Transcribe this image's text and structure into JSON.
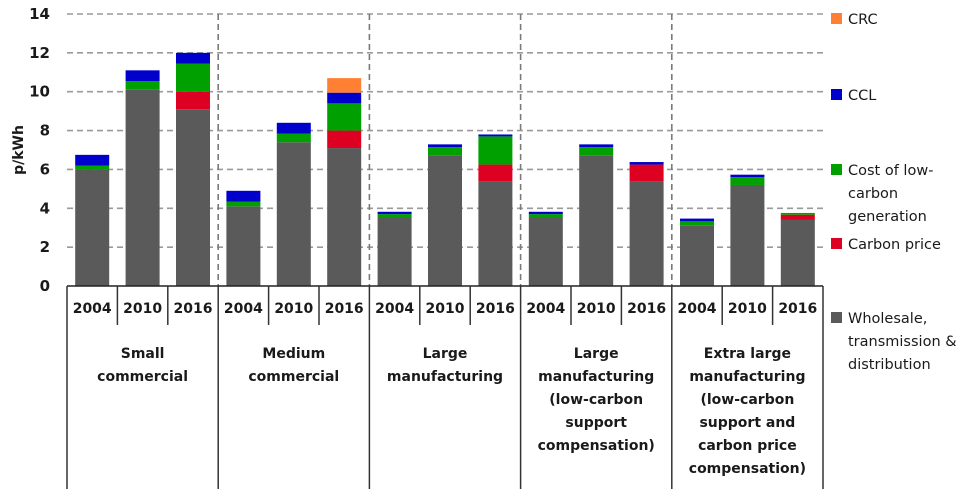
{
  "chart_data": {
    "type": "bar",
    "stacked": true,
    "title": "",
    "xlabel": "",
    "ylabel": "p/kWh",
    "ylim": [
      0,
      14
    ],
    "yticks": [
      0,
      2,
      4,
      6,
      8,
      10,
      12,
      14
    ],
    "grid": true,
    "legend_position": "right",
    "groups": [
      {
        "label": [
          "Small",
          "commercial"
        ]
      },
      {
        "label": [
          "Medium",
          "commercial"
        ]
      },
      {
        "label": [
          "Large",
          "manufacturing"
        ]
      },
      {
        "label": [
          "Large",
          "manufacturing",
          "(low-carbon",
          "support",
          "compensation)"
        ]
      },
      {
        "label": [
          "Extra large",
          "manufacturing",
          "(low-carbon",
          "support  and",
          "carbon price",
          "compensation)"
        ]
      }
    ],
    "years": [
      "2004",
      "2010",
      "2016"
    ],
    "categories": [
      "Small commercial 2004",
      "Small commercial 2010",
      "Small commercial 2016",
      "Medium commercial 2004",
      "Medium commercial 2010",
      "Medium commercial 2016",
      "Large manufacturing 2004",
      "Large manufacturing 2010",
      "Large manufacturing 2016",
      "Large manufacturing (low-carbon support compensation) 2004",
      "Large manufacturing (low-carbon support compensation) 2010",
      "Large manufacturing (low-carbon support compensation) 2016",
      "Extra large manufacturing (low-carbon support and carbon price compensation) 2004",
      "Extra large manufacturing (low-carbon support and carbon price compensation) 2010",
      "Extra large manufacturing (low-carbon support and carbon price compensation) 2016"
    ],
    "series": [
      {
        "name": "Wholesale, transmission & distribution",
        "legend_lines": [
          "Wholesale,",
          "transmission &",
          "distribution"
        ],
        "color": "#5a5a5a",
        "values": [
          6.0,
          10.1,
          9.1,
          4.1,
          7.4,
          7.1,
          3.5,
          6.7,
          5.4,
          3.5,
          6.7,
          5.4,
          3.1,
          5.2,
          3.4
        ]
      },
      {
        "name": "Carbon price",
        "legend_lines": [
          "Carbon price"
        ],
        "color": "#dd0022",
        "values": [
          0.0,
          0.0,
          0.9,
          0.0,
          0.0,
          0.9,
          0.0,
          0.0,
          0.85,
          0.0,
          0.0,
          0.85,
          0.0,
          0.0,
          0.27
        ]
      },
      {
        "name": "Cost of low-carbon generation",
        "legend_lines": [
          "Cost of low-",
          "carbon",
          "generation"
        ],
        "color": "#00a000",
        "values": [
          0.2,
          0.45,
          1.45,
          0.25,
          0.45,
          1.4,
          0.2,
          0.45,
          1.45,
          0.2,
          0.45,
          0.0,
          0.23,
          0.4,
          0.09
        ]
      },
      {
        "name": "CCL",
        "legend_lines": [
          "CCL"
        ],
        "color": "#0000cc",
        "values": [
          0.55,
          0.55,
          0.55,
          0.55,
          0.55,
          0.55,
          0.12,
          0.14,
          0.1,
          0.12,
          0.14,
          0.13,
          0.14,
          0.13,
          0.0
        ]
      },
      {
        "name": "CRC",
        "legend_lines": [
          "CRC"
        ],
        "color": "#ff7f33",
        "values": [
          0.0,
          0.0,
          0.0,
          0.0,
          0.0,
          0.75,
          0.0,
          0.0,
          0.0,
          0.0,
          0.0,
          0.0,
          0.0,
          0.0,
          0.0
        ]
      }
    ],
    "legend_order": [
      "CRC",
      "CCL",
      "Cost of low-carbon generation",
      "Carbon price",
      "Wholesale, transmission & distribution"
    ]
  }
}
